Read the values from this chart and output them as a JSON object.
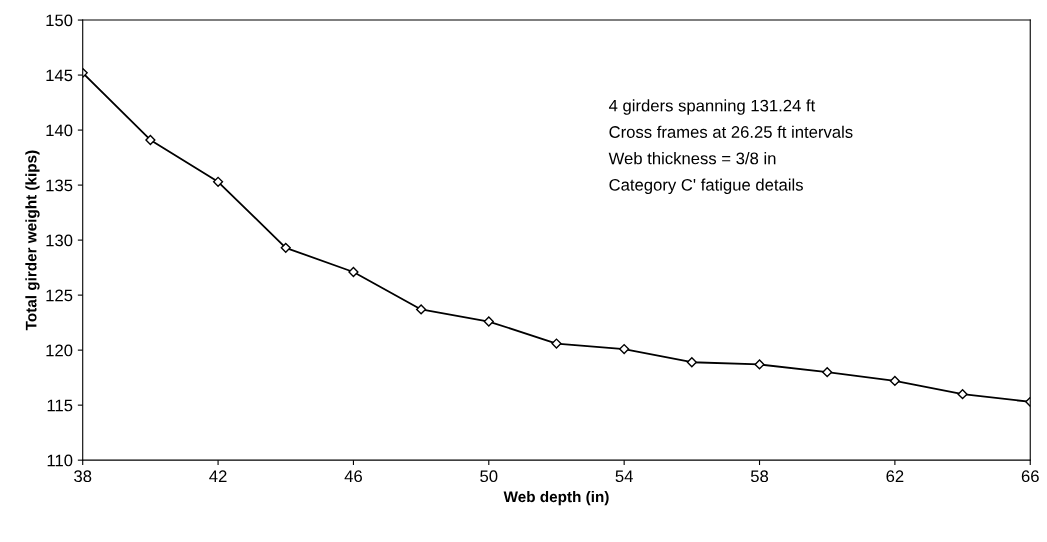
{
  "chart_data": {
    "type": "line",
    "xlabel": "Web depth (in)",
    "ylabel": "Total girder weight (kips)",
    "x": [
      38,
      40,
      42,
      44,
      46,
      48,
      50,
      52,
      54,
      56,
      58,
      60,
      62,
      64,
      66
    ],
    "series": [
      {
        "color": "#000000",
        "values": [
          145.2,
          139.1,
          135.3,
          129.3,
          127.1,
          123.7,
          122.6,
          120.6,
          120.1,
          118.9,
          118.7,
          118.0,
          117.2,
          116.0,
          115.3
        ]
      }
    ],
    "xlim": [
      38,
      66
    ],
    "xticks": [
      38,
      42,
      46,
      50,
      54,
      58,
      62,
      66
    ],
    "ylim": [
      110,
      150
    ],
    "yticks": [
      110,
      115,
      120,
      125,
      130,
      135,
      140,
      145,
      150
    ],
    "annotations": [
      "4 girders spanning 131.24 ft",
      "Cross frames at 26.25 ft intervals",
      "Web thickness = 3/8 in",
      "Category C' fatigue details"
    ],
    "marker": "diamond",
    "line_style": "solid",
    "grid": false,
    "legend": false
  }
}
